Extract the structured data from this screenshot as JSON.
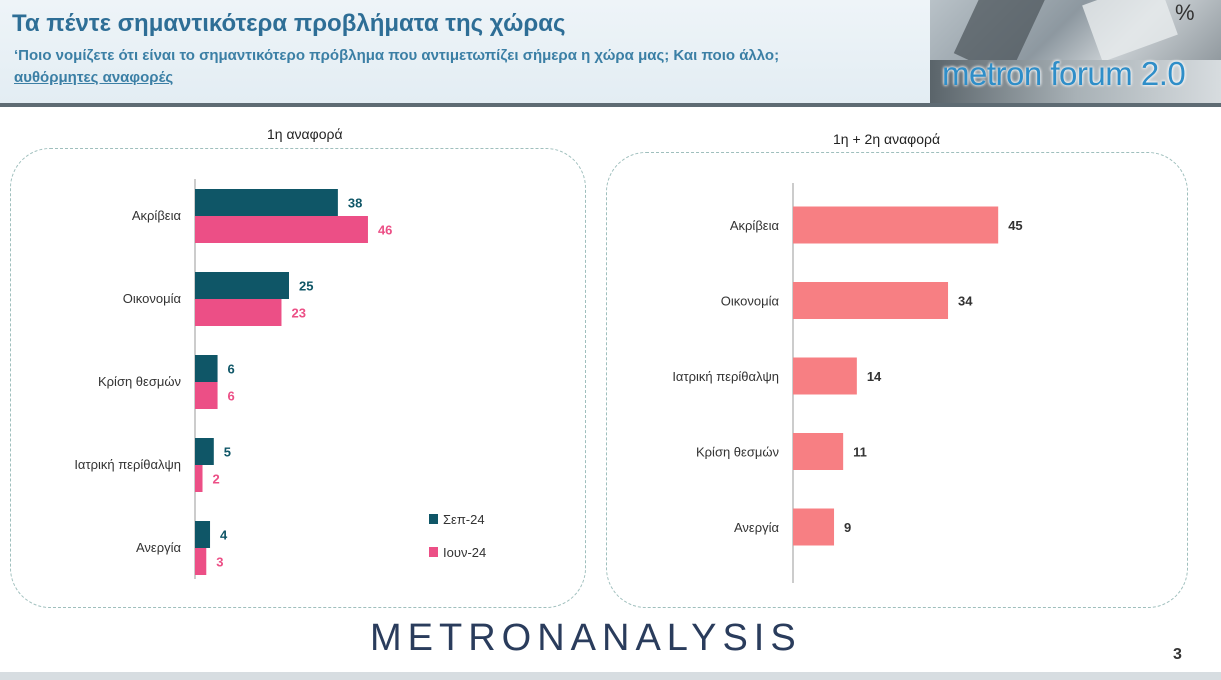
{
  "header": {
    "title": "Τα πέντε σημαντικότερα προβλήματα της χώρας",
    "subtitle_main": "‘Ποιο νομίζετε ότι είναι το σημαντικότερο πρόβλημα που αντιμετωπίζει σήμερα η χώρα μας; Και ποιο άλλο;",
    "subtitle_note": "αυθόρμητες αναφορές",
    "logo_text": "metron forum 2.0",
    "logo_symbol": "%"
  },
  "footer": {
    "brand": "METRONANALYSIS",
    "page_number": "3"
  },
  "colors": {
    "sep24": "#0f5667",
    "iun24": "#ec4f86",
    "combined": "#f77f83"
  },
  "chart_data": [
    {
      "type": "bar",
      "orientation": "horizontal",
      "title": "1η αναφορά",
      "categories": [
        "Ακρίβεια",
        "Οικονομία",
        "Κρίση θεσμών",
        "Ιατρική περίθαλψη",
        "Ανεργία"
      ],
      "series": [
        {
          "name": "Σεπ-24",
          "values": [
            38,
            25,
            6,
            5,
            4
          ]
        },
        {
          "name": "Ιουν-24",
          "values": [
            46,
            23,
            6,
            2,
            3
          ]
        }
      ],
      "xlim": [
        0,
        50
      ],
      "legend": "bottom-right",
      "grid": false
    },
    {
      "type": "bar",
      "orientation": "horizontal",
      "title": "1η + 2η αναφορά",
      "categories": [
        "Ακρίβεια",
        "Οικονομία",
        "Ιατρική περίθαλψη",
        "Κρίση θεσμών",
        "Ανεργία"
      ],
      "series": [
        {
          "values": [
            45,
            34,
            14,
            11,
            9
          ]
        }
      ],
      "xlim": [
        0,
        50
      ],
      "grid": false
    }
  ]
}
